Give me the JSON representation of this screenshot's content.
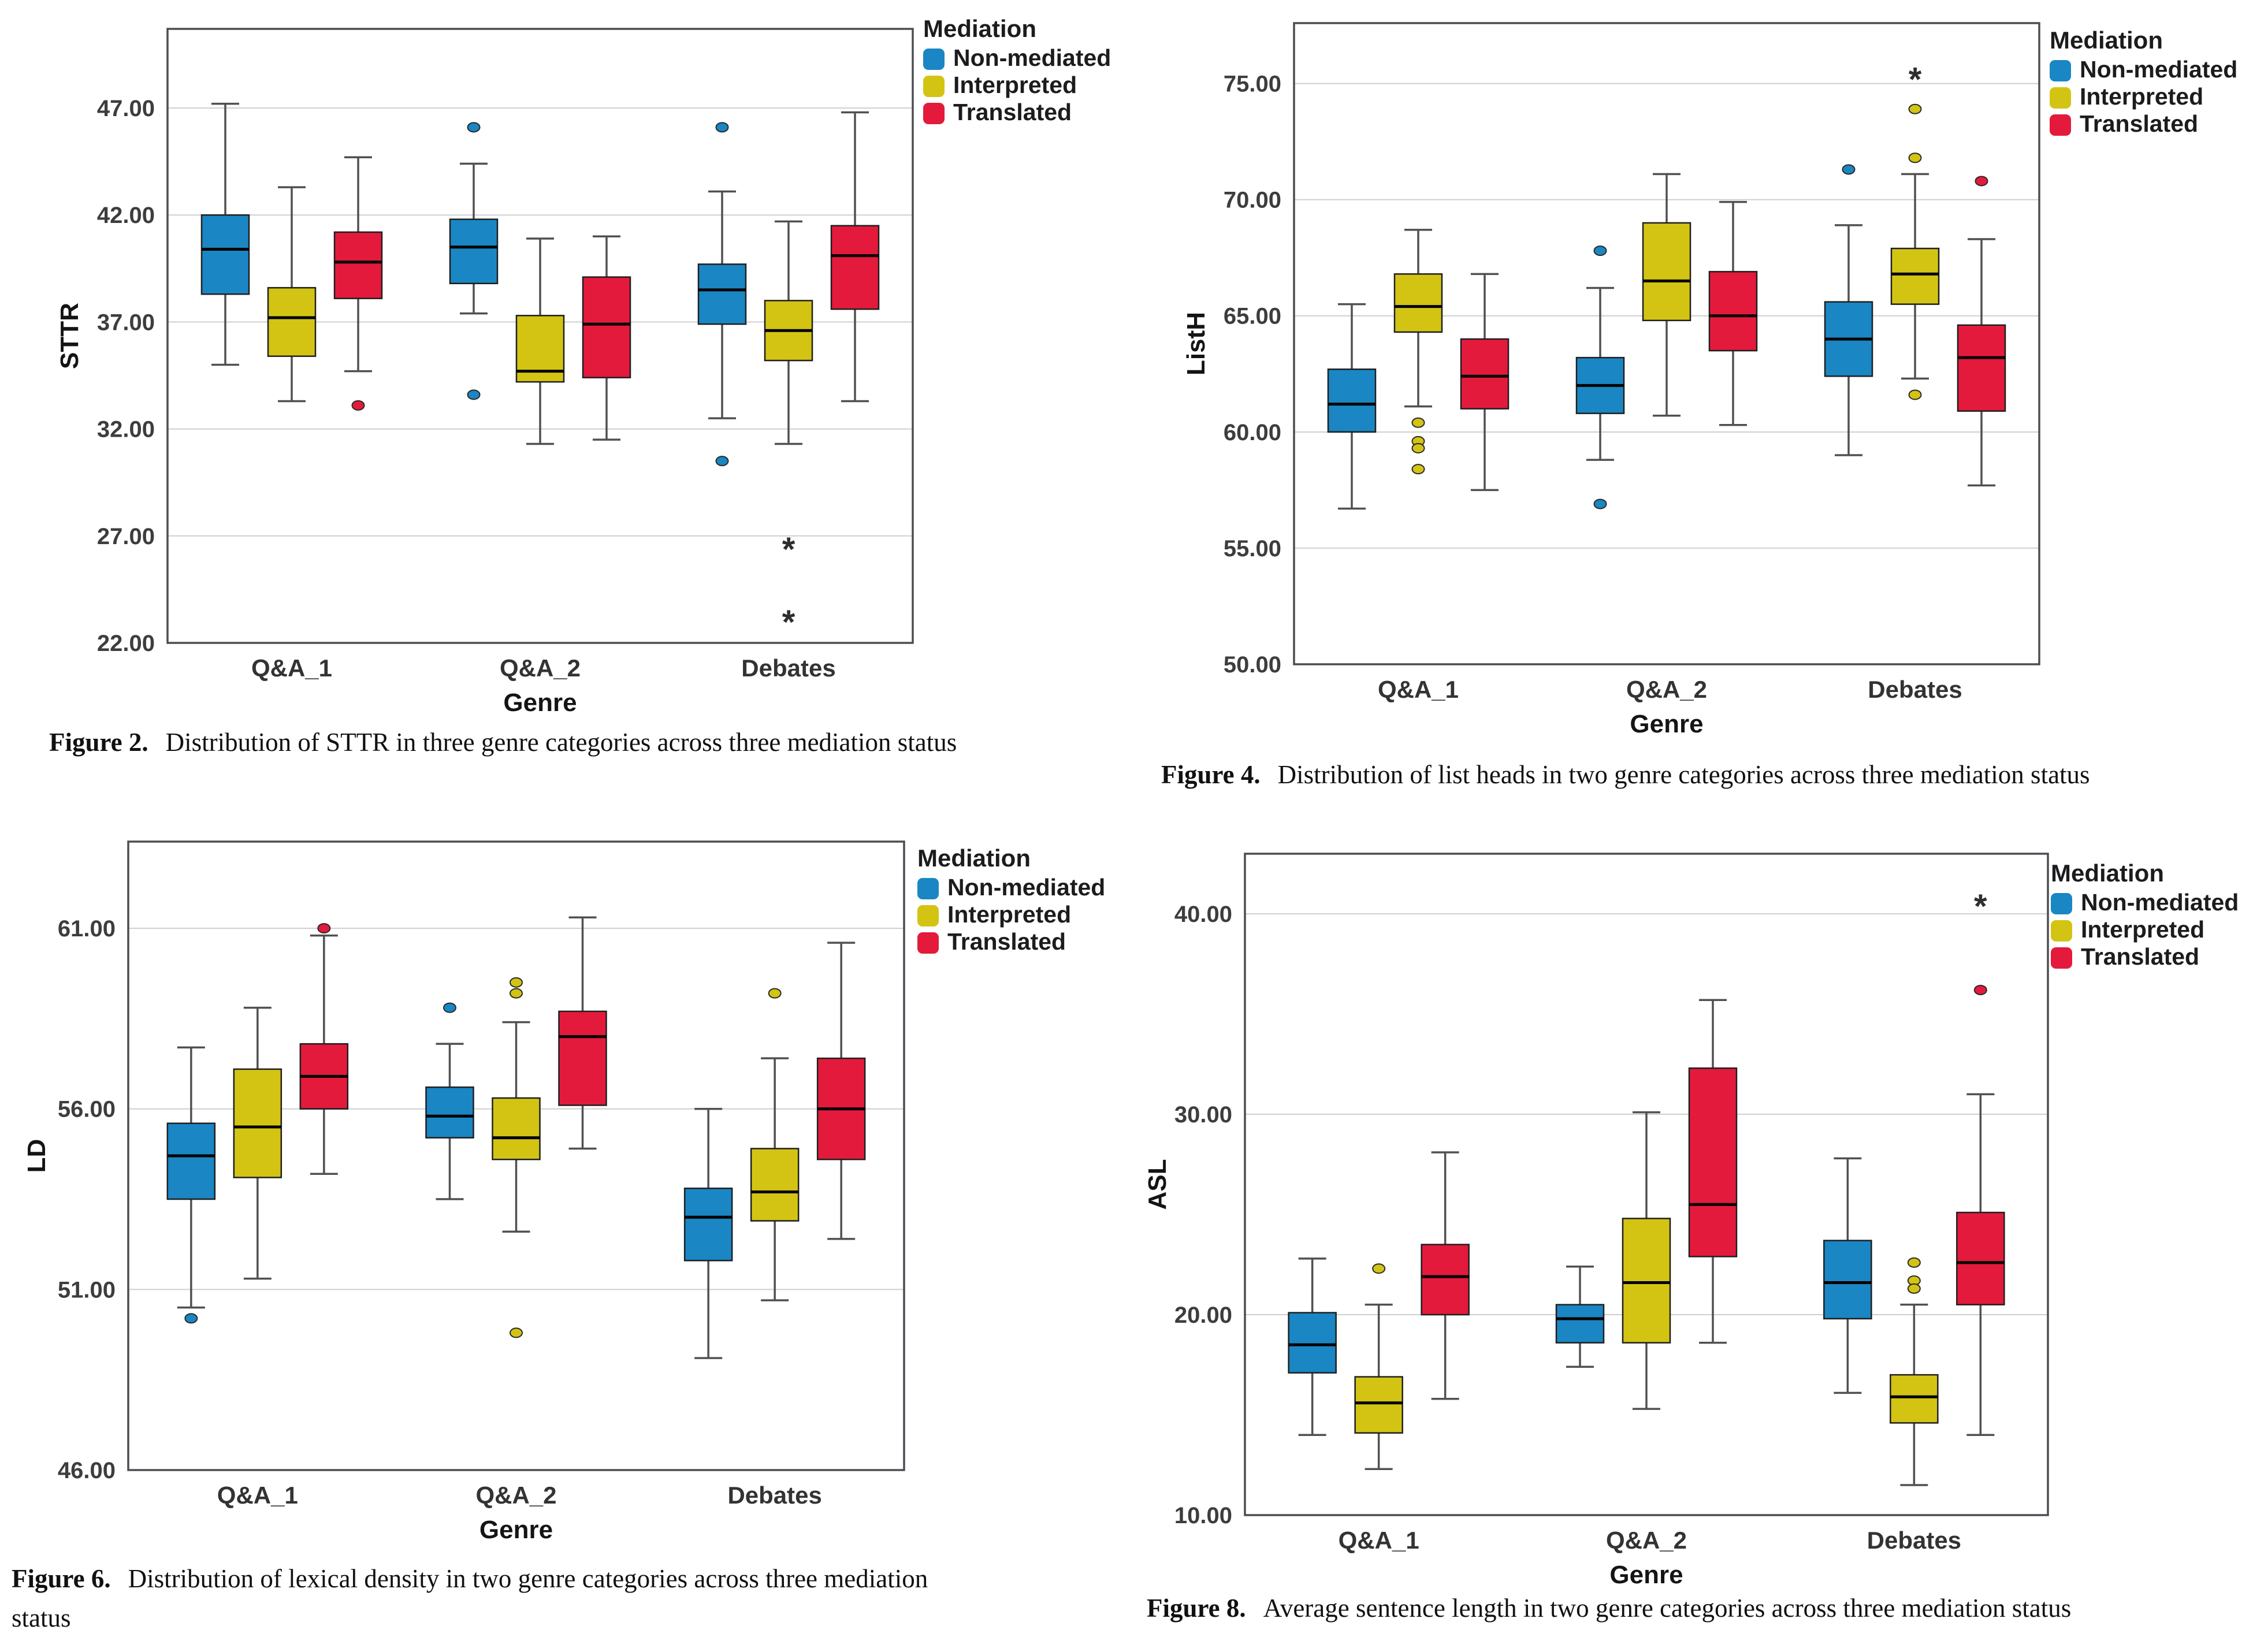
{
  "page": {
    "background": "#ffffff"
  },
  "colors": {
    "non_mediated": "#1a86c3",
    "interpreted": "#d3c414",
    "translated": "#e41a3c",
    "box_border": "#1f1f1f",
    "median": "#000000",
    "whisker": "#505052",
    "grid": "#cfcfcf",
    "frame": "#4c4d52"
  },
  "legend": {
    "title": "Mediation",
    "items": [
      {
        "label": "Non-mediated",
        "color": "#1a86c3"
      },
      {
        "label": "Interpreted",
        "color": "#d3c414"
      },
      {
        "label": "Translated",
        "color": "#e41a3c"
      }
    ]
  },
  "chart_data": [
    {
      "id": "sttr",
      "type": "box",
      "figure_label": "Figure 2.",
      "caption": "Distribution of STTR in three genre categories across three mediation status",
      "caption_line2": "",
      "ylabel": "STTR",
      "xlabel": "Genre",
      "ymin": 22,
      "ymax": 50.7,
      "grid": true,
      "legend_position": "right-top",
      "yticks": [
        {
          "value": 22,
          "label": "22.00"
        },
        {
          "value": 27,
          "label": "27.00"
        },
        {
          "value": 32,
          "label": "32.00"
        },
        {
          "value": 37,
          "label": "37.00"
        },
        {
          "value": 42,
          "label": "42.00"
        },
        {
          "value": 47,
          "label": "47.00"
        }
      ],
      "categories": [
        "Q&A_1",
        "Q&A_2",
        "Debates"
      ],
      "series": [
        "Non-mediated",
        "Interpreted",
        "Translated"
      ],
      "boxes": [
        {
          "category": "Q&A_1",
          "series": "Non-mediated",
          "low": 35.0,
          "q1": 38.3,
          "median": 40.4,
          "q3": 42.0,
          "high": 47.2,
          "outliers": [],
          "extremes": []
        },
        {
          "category": "Q&A_1",
          "series": "Interpreted",
          "low": 33.3,
          "q1": 35.4,
          "median": 37.2,
          "q3": 38.6,
          "high": 43.3,
          "outliers": [],
          "extremes": []
        },
        {
          "category": "Q&A_1",
          "series": "Translated",
          "low": 34.7,
          "q1": 38.1,
          "median": 39.8,
          "q3": 41.2,
          "high": 44.7,
          "outliers": [
            33.1
          ],
          "extremes": []
        },
        {
          "category": "Q&A_2",
          "series": "Non-mediated",
          "low": 37.4,
          "q1": 38.8,
          "median": 40.5,
          "q3": 41.8,
          "high": 44.4,
          "outliers": [
            46.1,
            33.6
          ],
          "extremes": []
        },
        {
          "category": "Q&A_2",
          "series": "Interpreted",
          "low": 31.3,
          "q1": 34.2,
          "median": 34.7,
          "q3": 37.3,
          "high": 40.9,
          "outliers": [],
          "extremes": []
        },
        {
          "category": "Q&A_2",
          "series": "Translated",
          "low": 31.5,
          "q1": 34.4,
          "median": 36.9,
          "q3": 39.1,
          "high": 41.0,
          "outliers": [],
          "extremes": []
        },
        {
          "category": "Debates",
          "series": "Non-mediated",
          "low": 32.5,
          "q1": 36.9,
          "median": 38.5,
          "q3": 39.7,
          "high": 43.1,
          "outliers": [
            46.1,
            30.5
          ],
          "extremes": []
        },
        {
          "category": "Debates",
          "series": "Interpreted",
          "low": 31.3,
          "q1": 35.2,
          "median": 36.6,
          "q3": 38.0,
          "high": 41.7,
          "outliers": [],
          "extremes": [
            26.4,
            23.0
          ]
        },
        {
          "category": "Debates",
          "series": "Translated",
          "low": 33.3,
          "q1": 37.6,
          "median": 40.1,
          "q3": 41.5,
          "high": 46.8,
          "outliers": [],
          "extremes": []
        }
      ]
    },
    {
      "id": "listh",
      "type": "box",
      "figure_label": "Figure 4.",
      "caption": "Distribution of list heads in two genre categories across three mediation status",
      "caption_line2": "",
      "ylabel": "ListH",
      "xlabel": "Genre",
      "ymin": 50,
      "ymax": 77.6,
      "grid": true,
      "legend_position": "right-top",
      "yticks": [
        {
          "value": 50,
          "label": "50.00"
        },
        {
          "value": 55,
          "label": "55.00"
        },
        {
          "value": 60,
          "label": "60.00"
        },
        {
          "value": 65,
          "label": "65.00"
        },
        {
          "value": 70,
          "label": "70.00"
        },
        {
          "value": 75,
          "label": "75.00"
        }
      ],
      "categories": [
        "Q&A_1",
        "Q&A_2",
        "Debates"
      ],
      "series": [
        "Non-mediated",
        "Interpreted",
        "Translated"
      ],
      "boxes": [
        {
          "category": "Q&A_1",
          "series": "Non-mediated",
          "low": 56.7,
          "q1": 60.0,
          "median": 61.2,
          "q3": 62.7,
          "high": 65.5,
          "outliers": [],
          "extremes": []
        },
        {
          "category": "Q&A_1",
          "series": "Interpreted",
          "low": 61.1,
          "q1": 64.3,
          "median": 65.4,
          "q3": 66.8,
          "high": 68.7,
          "outliers": [
            60.4,
            59.6,
            59.3,
            58.4
          ],
          "extremes": []
        },
        {
          "category": "Q&A_1",
          "series": "Translated",
          "low": 57.5,
          "q1": 61.0,
          "median": 62.4,
          "q3": 64.0,
          "high": 66.8,
          "outliers": [],
          "extremes": []
        },
        {
          "category": "Q&A_2",
          "series": "Non-mediated",
          "low": 58.8,
          "q1": 60.8,
          "median": 62.0,
          "q3": 63.2,
          "high": 66.2,
          "outliers": [
            67.8,
            56.9
          ],
          "extremes": []
        },
        {
          "category": "Q&A_2",
          "series": "Interpreted",
          "low": 60.7,
          "q1": 64.8,
          "median": 66.5,
          "q3": 69.0,
          "high": 71.1,
          "outliers": [],
          "extremes": []
        },
        {
          "category": "Q&A_2",
          "series": "Translated",
          "low": 60.3,
          "q1": 63.5,
          "median": 65.0,
          "q3": 66.9,
          "high": 69.9,
          "outliers": [],
          "extremes": []
        },
        {
          "category": "Debates",
          "series": "Non-mediated",
          "low": 59.0,
          "q1": 62.4,
          "median": 64.0,
          "q3": 65.6,
          "high": 68.9,
          "outliers": [
            71.3
          ],
          "extremes": []
        },
        {
          "category": "Debates",
          "series": "Interpreted",
          "low": 62.3,
          "q1": 65.5,
          "median": 66.8,
          "q3": 67.9,
          "high": 71.1,
          "outliers": [
            73.9,
            71.8,
            61.6
          ],
          "extremes": [
            75.2
          ]
        },
        {
          "category": "Debates",
          "series": "Translated",
          "low": 57.7,
          "q1": 60.9,
          "median": 63.2,
          "q3": 64.6,
          "high": 68.3,
          "outliers": [
            70.8
          ],
          "extremes": []
        }
      ]
    },
    {
      "id": "ld",
      "type": "box",
      "figure_label": "Figure 6.",
      "caption": "Distribution of lexical density in two genre categories across three mediation",
      "caption_line2": "status",
      "ylabel": "LD",
      "xlabel": "Genre",
      "ymin": 46,
      "ymax": 63.4,
      "grid": true,
      "legend_position": "right-top",
      "yticks": [
        {
          "value": 46,
          "label": "46.00"
        },
        {
          "value": 51,
          "label": "51.00"
        },
        {
          "value": 56,
          "label": "56.00"
        },
        {
          "value": 61,
          "label": "61.00"
        }
      ],
      "categories": [
        "Q&A_1",
        "Q&A_2",
        "Debates"
      ],
      "series": [
        "Non-mediated",
        "Interpreted",
        "Translated"
      ],
      "boxes": [
        {
          "category": "Q&A_1",
          "series": "Non-mediated",
          "low": 50.5,
          "q1": 53.5,
          "median": 54.7,
          "q3": 55.6,
          "high": 57.7,
          "outliers": [
            50.2
          ],
          "extremes": []
        },
        {
          "category": "Q&A_1",
          "series": "Interpreted",
          "low": 51.3,
          "q1": 54.1,
          "median": 55.5,
          "q3": 57.1,
          "high": 58.8,
          "outliers": [],
          "extremes": []
        },
        {
          "category": "Q&A_1",
          "series": "Translated",
          "low": 54.2,
          "q1": 56.0,
          "median": 56.9,
          "q3": 57.8,
          "high": 60.8,
          "outliers": [
            61.0
          ],
          "extremes": []
        },
        {
          "category": "Q&A_2",
          "series": "Non-mediated",
          "low": 53.5,
          "q1": 55.2,
          "median": 55.8,
          "q3": 56.6,
          "high": 57.8,
          "outliers": [
            58.8
          ],
          "extremes": []
        },
        {
          "category": "Q&A_2",
          "series": "Interpreted",
          "low": 52.6,
          "q1": 54.6,
          "median": 55.2,
          "q3": 56.3,
          "high": 58.4,
          "outliers": [
            59.5,
            59.2,
            49.8
          ],
          "extremes": []
        },
        {
          "category": "Q&A_2",
          "series": "Translated",
          "low": 54.9,
          "q1": 56.1,
          "median": 58.0,
          "q3": 58.7,
          "high": 61.3,
          "outliers": [],
          "extremes": []
        },
        {
          "category": "Debates",
          "series": "Non-mediated",
          "low": 49.1,
          "q1": 51.8,
          "median": 53.0,
          "q3": 53.8,
          "high": 56.0,
          "outliers": [],
          "extremes": []
        },
        {
          "category": "Debates",
          "series": "Interpreted",
          "low": 50.7,
          "q1": 52.9,
          "median": 53.7,
          "q3": 54.9,
          "high": 57.4,
          "outliers": [
            59.2
          ],
          "extremes": []
        },
        {
          "category": "Debates",
          "series": "Translated",
          "low": 52.4,
          "q1": 54.6,
          "median": 56.0,
          "q3": 57.4,
          "high": 60.6,
          "outliers": [],
          "extremes": []
        }
      ]
    },
    {
      "id": "asl",
      "type": "box",
      "figure_label": "Figure 8.",
      "caption": "Average sentence length in two genre categories across three mediation status",
      "caption_line2": "",
      "ylabel": "ASL",
      "xlabel": "Genre",
      "ymin": 10,
      "ymax": 43.0,
      "grid": true,
      "legend_position": "right-top",
      "yticks": [
        {
          "value": 10,
          "label": "10.00"
        },
        {
          "value": 20,
          "label": "20.00"
        },
        {
          "value": 30,
          "label": "30.00"
        },
        {
          "value": 40,
          "label": "40.00"
        }
      ],
      "categories": [
        "Q&A_1",
        "Q&A_2",
        "Debates"
      ],
      "series": [
        "Non-mediated",
        "Interpreted",
        "Translated"
      ],
      "boxes": [
        {
          "category": "Q&A_1",
          "series": "Non-mediated",
          "low": 14.0,
          "q1": 17.1,
          "median": 18.5,
          "q3": 20.1,
          "high": 22.8,
          "outliers": [],
          "extremes": []
        },
        {
          "category": "Q&A_1",
          "series": "Interpreted",
          "low": 12.3,
          "q1": 14.1,
          "median": 15.6,
          "q3": 16.9,
          "high": 20.5,
          "outliers": [
            22.3
          ],
          "extremes": []
        },
        {
          "category": "Q&A_1",
          "series": "Translated",
          "low": 15.8,
          "q1": 20.0,
          "median": 21.9,
          "q3": 23.5,
          "high": 28.1,
          "outliers": [],
          "extremes": []
        },
        {
          "category": "Q&A_2",
          "series": "Non-mediated",
          "low": 17.4,
          "q1": 18.6,
          "median": 19.8,
          "q3": 20.5,
          "high": 22.4,
          "outliers": [],
          "extremes": []
        },
        {
          "category": "Q&A_2",
          "series": "Interpreted",
          "low": 15.3,
          "q1": 18.6,
          "median": 21.6,
          "q3": 24.8,
          "high": 30.1,
          "outliers": [],
          "extremes": []
        },
        {
          "category": "Q&A_2",
          "series": "Translated",
          "low": 18.6,
          "q1": 22.9,
          "median": 25.5,
          "q3": 32.3,
          "high": 35.7,
          "outliers": [],
          "extremes": []
        },
        {
          "category": "Debates",
          "series": "Non-mediated",
          "low": 16.1,
          "q1": 19.8,
          "median": 21.6,
          "q3": 23.7,
          "high": 27.8,
          "outliers": [],
          "extremes": []
        },
        {
          "category": "Debates",
          "series": "Interpreted",
          "low": 11.5,
          "q1": 14.6,
          "median": 15.9,
          "q3": 17.0,
          "high": 20.5,
          "outliers": [
            22.6,
            21.7,
            21.3
          ],
          "extremes": []
        },
        {
          "category": "Debates",
          "series": "Translated",
          "low": 14.0,
          "q1": 20.5,
          "median": 22.6,
          "q3": 25.1,
          "high": 31.0,
          "outliers": [
            36.2
          ],
          "extremes": [
            40.4
          ]
        }
      ]
    }
  ]
}
